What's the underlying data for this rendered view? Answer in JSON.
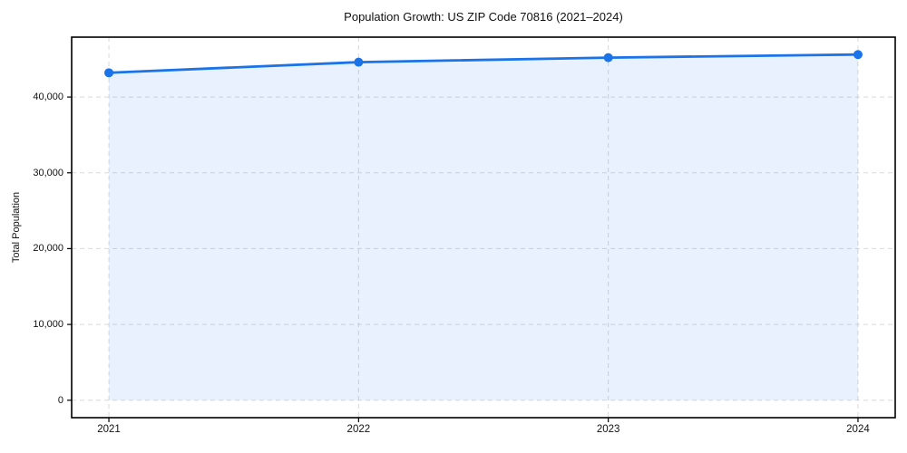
{
  "title": "Population Growth: US ZIP Code 70816 (2021–2024)",
  "chart_data": {
    "type": "area",
    "title": "Population Growth: US ZIP Code 70816 (2021–2024)",
    "xlabel": "",
    "ylabel": "Total Population",
    "categories": [
      "2021",
      "2022",
      "2023",
      "2024"
    ],
    "series": [
      {
        "name": "Total Population",
        "values": [
          43200,
          44600,
          45200,
          45600
        ]
      }
    ],
    "yticks": [
      0,
      10000,
      20000,
      30000,
      40000
    ],
    "ylim": [
      -2300,
      47900
    ],
    "grid": "dashed-both-axes",
    "legend_position": "none",
    "line_color": "#1a73e8",
    "marker": "circle",
    "marker_color": "#1a73e8",
    "fill_color": "rgba(26,115,232,0.10)",
    "gridline_color": "#d9d9d9",
    "spine_color": "#000000",
    "text_color": "#111111",
    "background_color": "#ffffff"
  }
}
